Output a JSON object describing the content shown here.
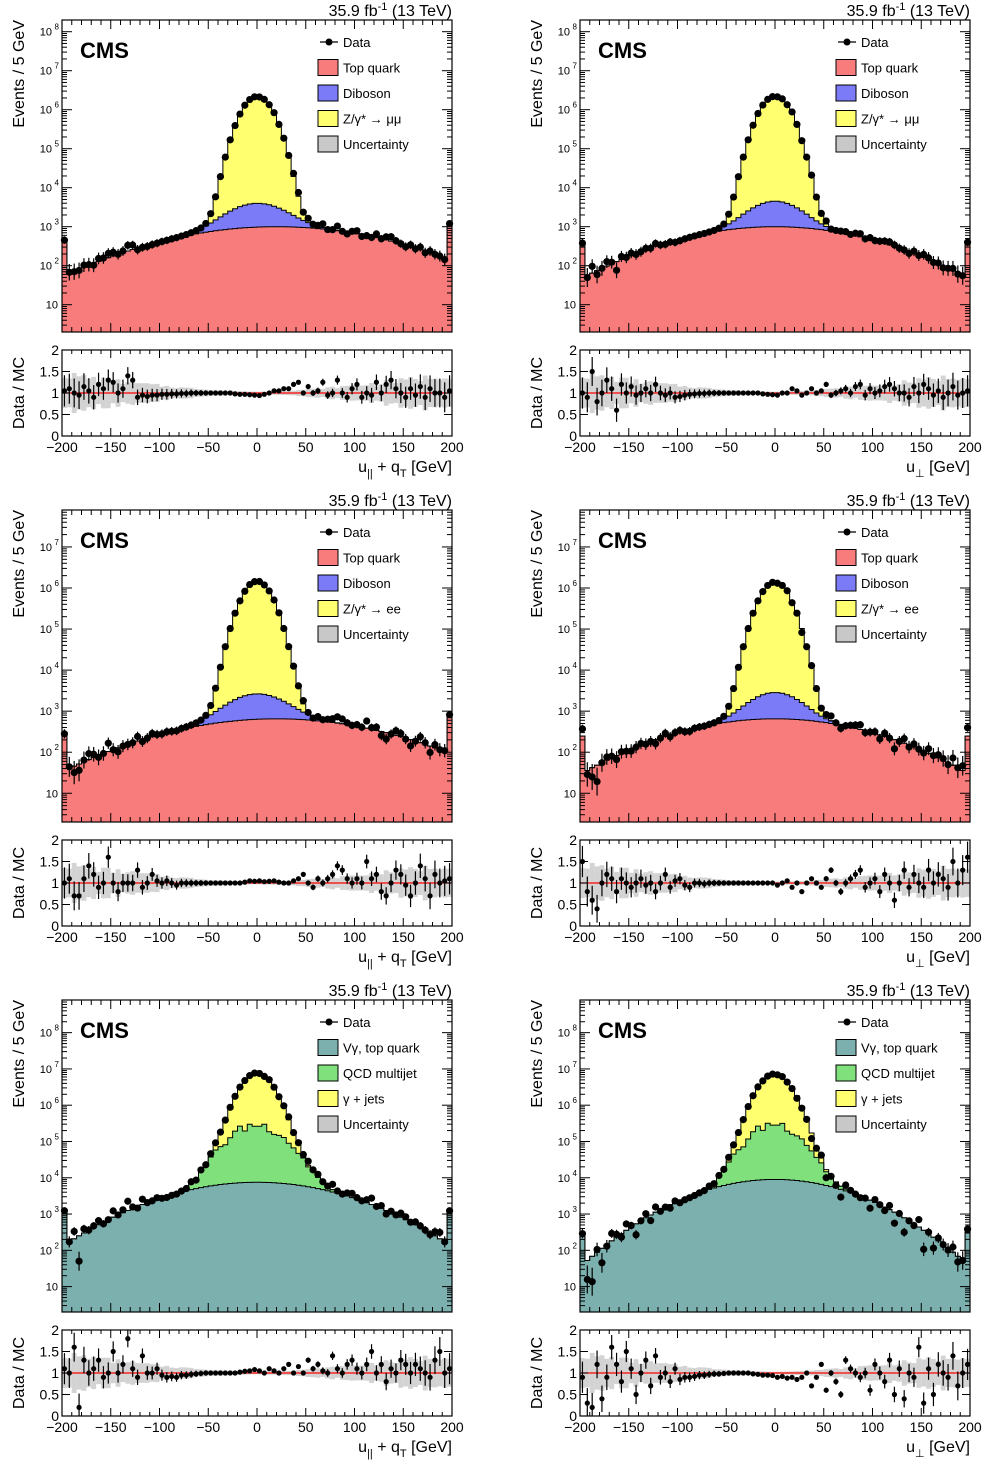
{
  "figure": {
    "lumi_label": "35.9 fb",
    "lumi_sup": "-1",
    "energy_label": " (13 TeV)",
    "cms_label": "CMS",
    "ratio_ylabel": "Data / MC",
    "main_ylabel": "Events / 5 GeV",
    "uncertainty_label": "Uncertainty",
    "data_label": "Data"
  },
  "colors": {
    "top": "#f87c7c",
    "diboson": "#7b7bf7",
    "dy": "#ffff70",
    "vgamma": "#7cb0ae",
    "qcd": "#80e07c",
    "gjets": "#ffff70",
    "ratio_line": "#ff0000",
    "uncertainty": "#c8c8c8"
  },
  "chart_data": [
    {
      "type": "area",
      "panel": "mumu-upar",
      "xlabel_main": "u",
      "xlabel_sub1": "||",
      "xlabel_mid": " + q",
      "xlabel_sub2": "T",
      "xlabel_end": " [GeV]",
      "ylabel": "Events / 5 GeV",
      "xlim": [
        -200,
        200
      ],
      "ylog": true,
      "ymax_exp": 8.3,
      "ratio_ylim": [
        0,
        2
      ],
      "legend": [
        "Data",
        "Top quark",
        "Diboson",
        "Z/γ* → μμ",
        "Uncertainty"
      ],
      "components": [
        {
          "name": "Top quark",
          "color_key": "top",
          "peak": 1000,
          "width": 90,
          "offset": 20,
          "floor": 15
        },
        {
          "name": "Diboson",
          "color_key": "diboson",
          "peak": 3000,
          "width": 25,
          "offset": 0
        },
        {
          "name": "Z/γ* → μμ",
          "color_key": "dy",
          "peak": 2300000,
          "width": 12,
          "offset": 0
        }
      ],
      "data_peak": 2300000,
      "ratio_points": [
        1.05,
        1.1,
        1.0,
        0.95,
        1.15,
        1.05,
        0.9,
        1.2,
        1.1,
        1.3,
        1.25,
        1.0,
        1.1,
        1.4,
        1.3,
        0.9,
        0.95,
        0.92,
        0.95,
        0.95,
        0.97,
        0.97,
        0.98,
        0.98,
        0.99,
        0.99,
        1.0,
        1.0,
        1.0,
        1.0,
        1.0,
        1.0,
        1.0,
        1.0,
        1.0,
        0.98,
        0.97,
        0.97,
        0.96,
        0.95,
        0.94,
        0.97,
        1.0,
        1.05,
        1.05,
        1.1,
        1.1,
        1.2,
        1.25,
        1.0,
        1.15,
        1.0,
        1.05,
        1.25,
        0.95,
        1.0,
        1.3,
        1.0,
        0.9,
        1.1,
        1.2,
        0.9,
        1.0,
        0.95,
        1.25,
        1.0,
        1.2,
        1.3,
        1.1,
        1.0,
        0.9,
        1.1,
        0.95,
        1.15,
        0.9,
        1.1,
        1.0,
        1.0,
        0.9,
        1.05
      ]
    },
    {
      "type": "area",
      "panel": "mumu-uperp",
      "xlabel_main": "u",
      "xlabel_sub1": "⊥",
      "xlabel_mid": "",
      "xlabel_sub2": "",
      "xlabel_end": " [GeV]",
      "ylabel": "Events / 5 GeV",
      "xlim": [
        -200,
        200
      ],
      "ylog": true,
      "ymax_exp": 8.3,
      "ratio_ylim": [
        0,
        2
      ],
      "legend": [
        "Data",
        "Top quark",
        "Diboson",
        "Z/γ* → μμ",
        "Uncertainty"
      ],
      "components": [
        {
          "name": "Top quark",
          "color_key": "top",
          "peak": 1000,
          "width": 80,
          "offset": 0,
          "floor": 8
        },
        {
          "name": "Diboson",
          "color_key": "diboson",
          "peak": 3500,
          "width": 22,
          "offset": 0
        },
        {
          "name": "Z/γ* → μμ",
          "color_key": "dy",
          "peak": 2300000,
          "width": 12,
          "offset": 0
        }
      ],
      "data_peak": 2300000,
      "ratio_points": [
        1.0,
        0.9,
        1.5,
        0.8,
        1.0,
        1.3,
        1.1,
        0.6,
        1.2,
        1.0,
        1.15,
        0.95,
        1.0,
        1.1,
        1.0,
        1.2,
        1.0,
        0.95,
        1.0,
        0.9,
        0.92,
        0.95,
        0.97,
        0.98,
        0.99,
        0.99,
        1.0,
        1.0,
        1.0,
        1.0,
        1.0,
        1.0,
        1.0,
        1.0,
        1.0,
        1.0,
        1.0,
        0.98,
        0.97,
        0.96,
        0.95,
        1.0,
        1.0,
        1.1,
        1.05,
        0.95,
        1.0,
        1.1,
        1.0,
        1.05,
        1.2,
        0.95,
        1.0,
        1.05,
        1.1,
        1.0,
        1.15,
        1.2,
        0.95,
        1.1,
        1.0,
        1.05,
        1.15,
        1.2,
        1.1,
        1.0,
        1.0,
        0.9,
        1.15,
        1.0,
        1.2,
        1.1,
        0.95,
        1.05,
        0.9,
        1.0,
        1.15,
        0.95,
        1.0,
        1.05
      ]
    },
    {
      "type": "area",
      "panel": "ee-upar",
      "xlabel_main": "u",
      "xlabel_sub1": "||",
      "xlabel_mid": " + q",
      "xlabel_sub2": "T",
      "xlabel_end": " [GeV]",
      "ylabel": "Events / 5 GeV",
      "xlim": [
        -200,
        200
      ],
      "ylog": true,
      "ymax_exp": 7.9,
      "ratio_ylim": [
        0,
        2
      ],
      "legend": [
        "Data",
        "Top quark",
        "Diboson",
        "Z/γ* → ee",
        "Uncertainty"
      ],
      "components": [
        {
          "name": "Top quark",
          "color_key": "top",
          "peak": 650,
          "width": 90,
          "offset": 20,
          "floor": 10
        },
        {
          "name": "Diboson",
          "color_key": "diboson",
          "peak": 2000,
          "width": 25,
          "offset": 0
        },
        {
          "name": "Z/γ* → ee",
          "color_key": "dy",
          "peak": 1400000,
          "width": 12,
          "offset": 0
        }
      ],
      "data_peak": 1400000,
      "ratio_points": [
        1.0,
        1.1,
        0.7,
        0.7,
        1.1,
        1.4,
        1.2,
        0.9,
        1.0,
        1.6,
        1.0,
        0.8,
        1.0,
        1.0,
        1.0,
        1.3,
        0.9,
        1.0,
        1.2,
        1.05,
        1.0,
        1.05,
        1.0,
        0.95,
        1.0,
        1.0,
        1.0,
        1.0,
        1.0,
        1.0,
        1.0,
        1.0,
        1.0,
        1.0,
        1.0,
        1.0,
        1.0,
        1.02,
        1.05,
        1.04,
        1.05,
        1.03,
        1.04,
        1.05,
        1.02,
        1.0,
        1.0,
        1.05,
        1.1,
        1.2,
        1.0,
        0.9,
        1.1,
        1.0,
        1.1,
        1.2,
        1.4,
        1.3,
        1.1,
        1.0,
        1.1,
        1.0,
        1.5,
        1.1,
        1.2,
        0.8,
        0.7,
        1.0,
        1.3,
        1.2,
        0.95,
        0.7,
        1.0,
        1.4,
        1.1,
        0.7,
        1.2,
        1.0,
        1.05,
        1.1
      ]
    },
    {
      "type": "area",
      "panel": "ee-uperp",
      "xlabel_main": "u",
      "xlabel_sub1": "⊥",
      "xlabel_mid": "",
      "xlabel_sub2": "",
      "xlabel_end": " [GeV]",
      "ylabel": "Events / 5 GeV",
      "xlim": [
        -200,
        200
      ],
      "ylog": true,
      "ymax_exp": 7.9,
      "ratio_ylim": [
        0,
        2
      ],
      "legend": [
        "Data",
        "Top quark",
        "Diboson",
        "Z/γ* → ee",
        "Uncertainty"
      ],
      "components": [
        {
          "name": "Top quark",
          "color_key": "top",
          "peak": 650,
          "width": 80,
          "offset": 0,
          "floor": 6
        },
        {
          "name": "Diboson",
          "color_key": "diboson",
          "peak": 2200,
          "width": 22,
          "offset": 0
        },
        {
          "name": "Z/γ* → ee",
          "color_key": "dy",
          "peak": 1400000,
          "width": 12,
          "offset": 0
        }
      ],
      "data_peak": 1400000,
      "ratio_points": [
        1.5,
        0.8,
        0.6,
        0.4,
        1.0,
        1.2,
        1.1,
        0.8,
        1.1,
        1.0,
        0.9,
        1.0,
        1.1,
        0.95,
        1.0,
        0.8,
        1.0,
        1.2,
        0.9,
        1.05,
        1.1,
        0.95,
        0.9,
        1.0,
        1.0,
        0.98,
        1.0,
        1.0,
        1.0,
        1.0,
        1.0,
        1.0,
        1.0,
        1.0,
        1.0,
        1.0,
        1.0,
        1.0,
        1.0,
        1.0,
        0.95,
        1.0,
        1.05,
        0.9,
        1.0,
        0.8,
        1.0,
        1.1,
        1.0,
        0.9,
        1.1,
        1.3,
        1.0,
        0.8,
        1.0,
        1.1,
        1.2,
        1.3,
        0.9,
        1.0,
        1.1,
        0.8,
        1.2,
        1.0,
        0.6,
        1.0,
        1.3,
        0.9,
        1.2,
        1.0,
        0.9,
        1.3,
        1.0,
        1.2,
        1.1,
        0.9,
        1.5,
        1.0,
        1.3,
        1.6
      ]
    },
    {
      "type": "area",
      "panel": "gamma-upar",
      "xlabel_main": "u",
      "xlabel_sub1": "||",
      "xlabel_mid": " + q",
      "xlabel_sub2": "T",
      "xlabel_end": " [GeV]",
      "ylabel": "Events / 5 GeV",
      "xlim": [
        -200,
        200
      ],
      "ylog": true,
      "ymax_exp": 8.9,
      "ratio_ylim": [
        0,
        2
      ],
      "legend": [
        "Data",
        "Vγ, top quark",
        "QCD multijet",
        "γ + jets",
        "Uncertainty"
      ],
      "components": [
        {
          "name": "Vγ, top quark",
          "color_key": "vgamma",
          "peak": 7500,
          "width": 70,
          "offset": 0,
          "floor": 80
        },
        {
          "name": "QCD multijet",
          "color_key": "qcd",
          "peak": 280000,
          "width": 22,
          "offset": 0
        },
        {
          "name": "γ + jets",
          "color_key": "gjets",
          "peak": 7000000,
          "width": 13,
          "offset": 0
        }
      ],
      "data_peak": 7000000,
      "ratio_points": [
        1.1,
        1.0,
        1.6,
        0.2,
        1.3,
        1.0,
        1.1,
        1.3,
        0.9,
        1.0,
        1.5,
        1.0,
        1.2,
        1.8,
        1.1,
        0.9,
        1.4,
        1.0,
        1.0,
        1.1,
        0.95,
        0.9,
        0.92,
        0.9,
        0.95,
        0.95,
        0.97,
        0.98,
        0.99,
        1.0,
        1.0,
        1.0,
        1.0,
        1.0,
        1.0,
        1.0,
        1.02,
        1.04,
        1.05,
        1.08,
        1.05,
        1.0,
        1.1,
        1.05,
        1.0,
        1.1,
        1.2,
        1.0,
        1.15,
        1.0,
        1.3,
        1.1,
        1.2,
        1.05,
        1.0,
        1.4,
        1.1,
        1.0,
        1.2,
        1.3,
        1.1,
        1.0,
        1.2,
        1.5,
        1.0,
        1.2,
        0.8,
        1.1,
        1.0,
        1.3,
        1.2,
        1.0,
        1.2,
        1.1,
        1.0,
        0.9,
        1.3,
        1.5,
        1.0,
        1.1
      ]
    },
    {
      "type": "area",
      "panel": "gamma-uperp",
      "xlabel_main": "u",
      "xlabel_sub1": "⊥",
      "xlabel_mid": "",
      "xlabel_sub2": "",
      "xlabel_end": " [GeV]",
      "ylabel": "Events / 5 GeV",
      "xlim": [
        -200,
        200
      ],
      "ylog": true,
      "ymax_exp": 8.9,
      "ratio_ylim": [
        0,
        2
      ],
      "legend": [
        "Data",
        "Vγ, top quark",
        "QCD multijet",
        "γ + jets",
        "Uncertainty"
      ],
      "components": [
        {
          "name": "Vγ, top quark",
          "color_key": "vgamma",
          "peak": 9000,
          "width": 60,
          "offset": 0,
          "floor": 20
        },
        {
          "name": "QCD multijet",
          "color_key": "qcd",
          "peak": 300000,
          "width": 20,
          "offset": 0
        },
        {
          "name": "γ + jets",
          "color_key": "gjets",
          "peak": 7500000,
          "width": 13,
          "offset": 0
        }
      ],
      "data_peak": 7500000,
      "ratio_points": [
        0.9,
        0.3,
        0.2,
        1.2,
        0.4,
        0.9,
        1.6,
        1.2,
        0.8,
        1.5,
        1.1,
        0.5,
        1.0,
        1.3,
        0.7,
        1.4,
        0.9,
        1.0,
        0.8,
        1.1,
        0.85,
        0.9,
        0.9,
        0.92,
        0.95,
        0.95,
        0.97,
        0.98,
        0.98,
        0.99,
        1.0,
        1.0,
        1.0,
        1.0,
        1.0,
        0.98,
        0.97,
        0.95,
        0.95,
        0.94,
        0.9,
        0.92,
        0.88,
        0.9,
        0.85,
        0.9,
        1.0,
        0.7,
        0.9,
        1.2,
        0.6,
        1.0,
        0.8,
        0.5,
        1.3,
        1.1,
        1.0,
        0.9,
        1.0,
        0.6,
        1.2,
        1.0,
        0.8,
        1.3,
        0.5,
        1.1,
        0.4,
        1.0,
        0.9,
        1.6,
        0.3,
        1.1,
        0.5,
        1.2,
        1.0,
        0.9,
        1.4,
        0.7,
        1.0,
        1.2
      ]
    }
  ]
}
